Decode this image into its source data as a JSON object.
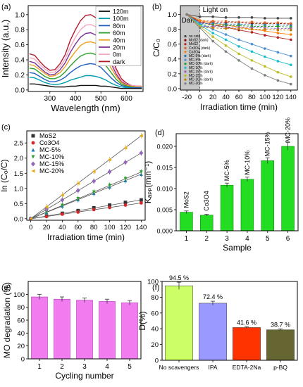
{
  "chart_data": [
    {
      "panel": "(a)",
      "type": "line",
      "xlabel": "Wavelength (nm)",
      "ylabel": "Intensity (a.u.)",
      "xlim": [
        215,
        665
      ],
      "ylim": [
        -0.02,
        1.12
      ],
      "xticks": [
        300,
        400,
        500,
        600
      ],
      "yticks": [
        0.0,
        0.2,
        0.4,
        0.6,
        0.8,
        1.0
      ],
      "ytick_labels": [
        "0.0",
        "0.2",
        "0.4",
        "0.6",
        "0.8",
        "1.0"
      ],
      "legend_position": "top-right",
      "x": [
        220,
        240,
        260,
        280,
        300,
        320,
        340,
        360,
        380,
        400,
        420,
        440,
        460,
        480,
        500,
        520,
        540,
        560,
        580,
        600,
        620,
        640,
        660
      ],
      "series": [
        {
          "name": "dark",
          "color": "#b2182b",
          "peak": 1.0,
          "values": [
            0.48,
            0.46,
            0.38,
            0.31,
            0.26,
            0.27,
            0.35,
            0.47,
            0.66,
            0.8,
            0.92,
            0.99,
            1.0,
            0.96,
            0.83,
            0.65,
            0.46,
            0.28,
            0.15,
            0.09,
            0.06,
            0.05,
            0.05
          ]
        },
        {
          "name": "0m",
          "color": "#f4a6c0",
          "peak": 0.87,
          "values": [
            0.43,
            0.41,
            0.34,
            0.28,
            0.23,
            0.24,
            0.31,
            0.41,
            0.57,
            0.7,
            0.8,
            0.86,
            0.87,
            0.84,
            0.73,
            0.56,
            0.4,
            0.25,
            0.13,
            0.08,
            0.06,
            0.05,
            0.05
          ]
        },
        {
          "name": "20m",
          "color": "#7b3294",
          "peak": 0.76,
          "values": [
            0.38,
            0.36,
            0.3,
            0.24,
            0.2,
            0.21,
            0.27,
            0.36,
            0.5,
            0.61,
            0.7,
            0.75,
            0.76,
            0.73,
            0.64,
            0.49,
            0.35,
            0.21,
            0.11,
            0.07,
            0.05,
            0.04,
            0.04
          ]
        },
        {
          "name": "40m",
          "color": "#f0a020",
          "peak": 0.64,
          "values": [
            0.34,
            0.32,
            0.27,
            0.22,
            0.18,
            0.19,
            0.23,
            0.31,
            0.42,
            0.51,
            0.59,
            0.63,
            0.64,
            0.62,
            0.54,
            0.41,
            0.29,
            0.18,
            0.1,
            0.06,
            0.05,
            0.04,
            0.04
          ]
        },
        {
          "name": "60m",
          "color": "#2ca02c",
          "peak": 0.49,
          "values": [
            0.29,
            0.28,
            0.23,
            0.18,
            0.15,
            0.15,
            0.18,
            0.24,
            0.32,
            0.39,
            0.45,
            0.48,
            0.49,
            0.47,
            0.41,
            0.32,
            0.23,
            0.14,
            0.08,
            0.05,
            0.04,
            0.03,
            0.03
          ]
        },
        {
          "name": "80m",
          "color": "#1f5fbf",
          "peak": 0.35,
          "values": [
            0.23,
            0.22,
            0.18,
            0.14,
            0.11,
            0.11,
            0.13,
            0.17,
            0.23,
            0.28,
            0.32,
            0.34,
            0.35,
            0.34,
            0.3,
            0.23,
            0.16,
            0.1,
            0.06,
            0.04,
            0.03,
            0.03,
            0.03
          ]
        },
        {
          "name": "100m",
          "color": "#00a0b0",
          "peak": 0.19,
          "values": [
            0.17,
            0.16,
            0.13,
            0.1,
            0.08,
            0.07,
            0.08,
            0.1,
            0.13,
            0.15,
            0.17,
            0.19,
            0.19,
            0.18,
            0.16,
            0.13,
            0.09,
            0.06,
            0.04,
            0.03,
            0.02,
            0.02,
            0.02
          ]
        },
        {
          "name": "120m",
          "color": "#111111",
          "peak": 0.06,
          "values": [
            0.08,
            0.08,
            0.07,
            0.06,
            0.05,
            0.04,
            0.04,
            0.04,
            0.05,
            0.05,
            0.06,
            0.06,
            0.06,
            0.06,
            0.05,
            0.05,
            0.04,
            0.03,
            0.02,
            0.02,
            0.02,
            0.02,
            0.02
          ]
        }
      ]
    },
    {
      "panel": "(b)",
      "type": "line",
      "xlabel": "Irradiation time (min)",
      "ylabel": "C/C₀",
      "xlim": [
        -30,
        150
      ],
      "ylim": [
        -0.02,
        1.12
      ],
      "xticks": [
        -20,
        0,
        20,
        40,
        60,
        80,
        100,
        120,
        140
      ],
      "yticks": [
        0.0,
        0.2,
        0.4,
        0.6,
        0.8,
        1.0
      ],
      "ytick_labels": [
        "0.0",
        "0.2",
        "0.4",
        "0.6",
        "0.8",
        "1.0"
      ],
      "annotations": {
        "dark": "Dark",
        "light": "Light on"
      },
      "legend_position": "bottom-left",
      "x": [
        -20,
        0,
        20,
        40,
        60,
        80,
        100,
        120,
        140
      ],
      "series": [
        {
          "name": "no cata",
          "color": "#444444",
          "values": [
            1.0,
            0.97,
            0.97,
            0.96,
            0.96,
            0.96,
            0.95,
            0.95,
            0.95
          ]
        },
        {
          "name": "MoS2 (dark)",
          "color": "#8b0000",
          "values": [
            1.0,
            0.9,
            0.9,
            0.89,
            0.89,
            0.88,
            0.88,
            0.88,
            0.87
          ]
        },
        {
          "name": "MoS2",
          "color": "#b22222",
          "values": [
            1.0,
            0.9,
            0.86,
            0.83,
            0.79,
            0.76,
            0.72,
            0.69,
            0.66
          ]
        },
        {
          "name": "Co3O4 (dark)",
          "color": "#e06020",
          "values": [
            1.0,
            0.92,
            0.91,
            0.91,
            0.9,
            0.9,
            0.89,
            0.89,
            0.88
          ]
        },
        {
          "name": "Co3O4",
          "color": "#ff7f0e",
          "values": [
            1.0,
            0.92,
            0.88,
            0.86,
            0.83,
            0.8,
            0.78,
            0.75,
            0.73
          ]
        },
        {
          "name": "MC-5% (dark)",
          "color": "#1f77b4",
          "values": [
            1.0,
            0.88,
            0.88,
            0.87,
            0.87,
            0.86,
            0.86,
            0.86,
            0.85
          ]
        },
        {
          "name": "MC-5%",
          "color": "#4c8fd6",
          "values": [
            1.0,
            0.88,
            0.8,
            0.73,
            0.66,
            0.6,
            0.54,
            0.49,
            0.44
          ]
        },
        {
          "name": "MC-10% (dark)",
          "color": "#2ca02c",
          "values": [
            1.0,
            0.86,
            0.86,
            0.85,
            0.85,
            0.84,
            0.84,
            0.84,
            0.83
          ]
        },
        {
          "name": "MC-10%",
          "color": "#17becf",
          "values": [
            1.0,
            0.86,
            0.75,
            0.66,
            0.57,
            0.5,
            0.43,
            0.37,
            0.32
          ]
        },
        {
          "name": "MC-15% (dark)",
          "color": "#9467bd",
          "values": [
            1.0,
            0.84,
            0.84,
            0.83,
            0.83,
            0.82,
            0.82,
            0.81,
            0.81
          ]
        },
        {
          "name": "MC-15%",
          "color": "#bcbd22",
          "values": [
            1.0,
            0.84,
            0.7,
            0.58,
            0.47,
            0.38,
            0.3,
            0.22,
            0.16
          ]
        },
        {
          "name": "MC-20% (dark)",
          "color": "#c47c00",
          "values": [
            1.0,
            0.82,
            0.82,
            0.81,
            0.81,
            0.8,
            0.8,
            0.79,
            0.79
          ]
        },
        {
          "name": "MC-20%",
          "color": "#7f7f7f",
          "values": [
            1.0,
            0.82,
            0.64,
            0.5,
            0.38,
            0.27,
            0.18,
            0.11,
            0.06
          ]
        }
      ]
    },
    {
      "panel": "(c)",
      "type": "scatter",
      "xlabel": "Irradiation time (min)",
      "ylabel": "ln (C₀/C)",
      "xlim": [
        -5,
        145
      ],
      "ylim": [
        -0.05,
        2.9
      ],
      "xticks": [
        0,
        20,
        40,
        60,
        80,
        100,
        120,
        140
      ],
      "yticks": [
        0.0,
        0.5,
        1.0,
        1.5,
        2.0,
        2.5
      ],
      "ytick_labels": [
        "0.0",
        "0.5",
        "1.0",
        "1.5",
        "2.0",
        "2.5"
      ],
      "legend_position": "top-left",
      "x": [
        0,
        20,
        40,
        60,
        80,
        100,
        120,
        140
      ],
      "series": [
        {
          "name": "MoS2",
          "color": "#333333",
          "marker": "square",
          "values": [
            0.0,
            0.09,
            0.18,
            0.27,
            0.36,
            0.45,
            0.54,
            0.62
          ]
        },
        {
          "name": "Co3O4",
          "color": "#d62728",
          "marker": "circle",
          "values": [
            0.0,
            0.07,
            0.15,
            0.22,
            0.3,
            0.37,
            0.45,
            0.52
          ]
        },
        {
          "name": "MC-5%",
          "color": "#1f77b4",
          "marker": "triangle",
          "values": [
            0.0,
            0.21,
            0.42,
            0.63,
            0.84,
            1.05,
            1.26,
            1.47
          ]
        },
        {
          "name": "MC-10%",
          "color": "#2ca02c",
          "marker": "triangle-down",
          "values": [
            0.0,
            0.22,
            0.44,
            0.66,
            0.88,
            1.1,
            1.32,
            1.54
          ]
        },
        {
          "name": "MC-15%",
          "color": "#9467bd",
          "marker": "diamond",
          "values": [
            0.0,
            0.31,
            0.62,
            0.93,
            1.24,
            1.55,
            1.86,
            2.17
          ]
        },
        {
          "name": "MC-20%",
          "color": "#e6a817",
          "marker": "triangle-left",
          "values": [
            0.0,
            0.39,
            0.78,
            1.17,
            1.56,
            1.95,
            2.34,
            2.74
          ]
        }
      ]
    },
    {
      "panel": "(d)",
      "type": "bar",
      "xlabel": "Sample",
      "ylabel": "Kₐₚₚ(min⁻¹)",
      "ylim": [
        0,
        0.023
      ],
      "yticks": [
        0.0,
        0.005,
        0.01,
        0.015,
        0.02
      ],
      "ytick_labels": [
        "0.000",
        "0.005",
        "0.010",
        "0.015",
        "0.020"
      ],
      "categories": [
        "1",
        "2",
        "3",
        "4",
        "5",
        "6"
      ],
      "bar_labels": [
        "MoS2",
        "Co3O4",
        "MC-5%",
        "MC-10%",
        "MC-15%",
        "MC-20%"
      ],
      "values": [
        0.0044,
        0.0037,
        0.0108,
        0.0122,
        0.0166,
        0.02
      ],
      "errors": [
        0.0003,
        0.0002,
        0.0005,
        0.0005,
        0.0007,
        0.0009
      ],
      "color": "#22dd22"
    },
    {
      "panel": "(e)",
      "type": "bar",
      "xlabel": "Cycling number",
      "ylabel": "MO degradation (%)",
      "ylim": [
        0,
        120
      ],
      "yticks": [
        0,
        20,
        40,
        60,
        80,
        100
      ],
      "ytick_labels": [
        "0",
        "20",
        "40",
        "60",
        "80",
        "100"
      ],
      "categories": [
        "1",
        "2",
        "3",
        "4",
        "5"
      ],
      "values": [
        96,
        92.5,
        91,
        89,
        87
      ],
      "errors": [
        4,
        3.5,
        3.5,
        3.5,
        3.5
      ],
      "color": "#f07cf0"
    },
    {
      "panel": "(f)",
      "type": "bar",
      "ylabel": "D(%)",
      "ylim": [
        0,
        100
      ],
      "yticks": [
        0,
        20,
        40,
        60,
        80,
        100
      ],
      "ytick_labels": [
        "0",
        "20",
        "40",
        "60",
        "80",
        "100"
      ],
      "categories": [
        "No scavengers",
        "IPA",
        "EDTA-2Na",
        "p-BQ"
      ],
      "values": [
        94.5,
        72.4,
        41.6,
        38.7
      ],
      "value_labels": [
        "94.5 %",
        "72.4 %",
        "41.6 %",
        "38.7 %"
      ],
      "errors": [
        4.5,
        2.5,
        1.0,
        1.0
      ],
      "colors": [
        "#ccff66",
        "#9999ff",
        "#ff3300",
        "#666633"
      ]
    }
  ]
}
